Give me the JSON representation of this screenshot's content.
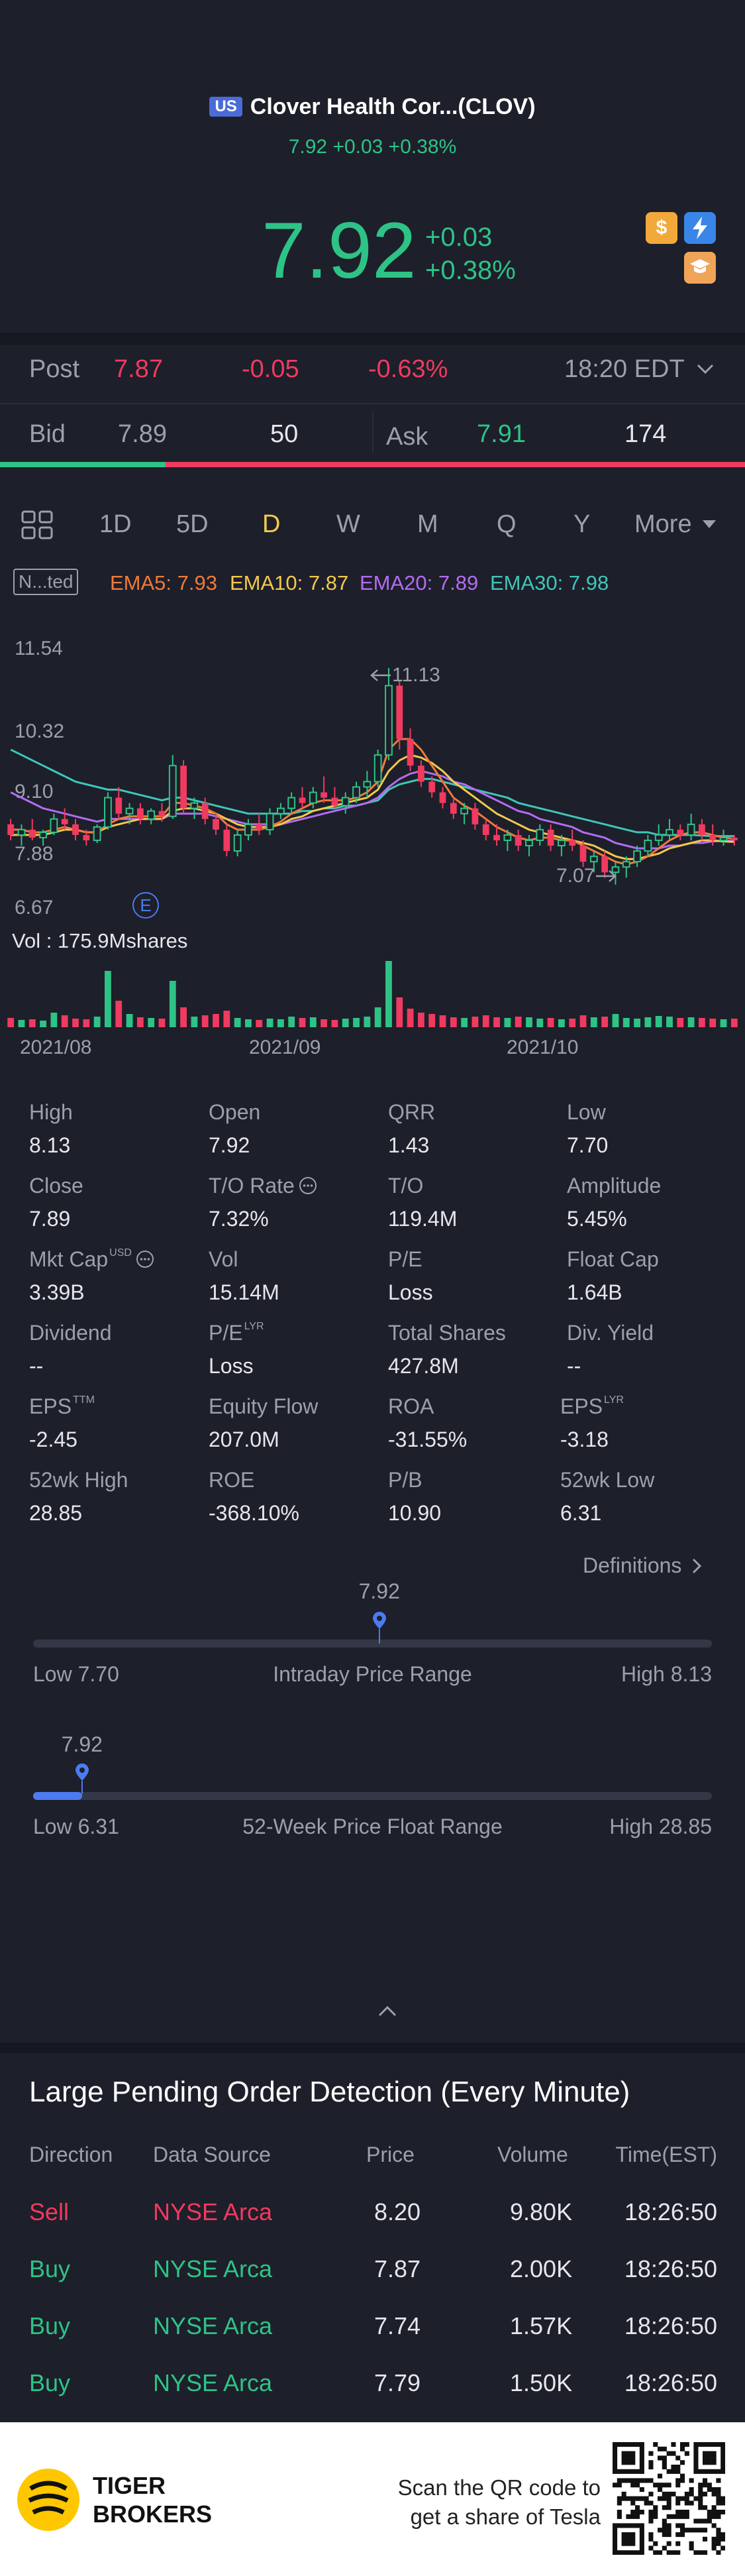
{
  "header": {
    "market_badge": "US",
    "title": "Clover Health Cor...(CLOV)",
    "subtitle": "7.92 +0.03 +0.38%"
  },
  "quote": {
    "price": "7.92",
    "change": "+0.03",
    "change_pct": "+0.38%",
    "dollar_icon": "$"
  },
  "post": {
    "label": "Post",
    "price": "7.87",
    "change": "-0.05",
    "change_pct": "-0.63%",
    "time": "18:20 EDT"
  },
  "bidask": {
    "bid_label": "Bid",
    "bid": "7.89",
    "bid_size": "50",
    "ask_label": "Ask",
    "ask": "7.91",
    "ask_size": "174"
  },
  "tabs": [
    "1D",
    "5D",
    "D",
    "W",
    "M",
    "Q",
    "Y",
    "More"
  ],
  "active_tab": "D",
  "indicators": {
    "badge": "N...ted",
    "ema5": "EMA5: 7.93",
    "ema10": "EMA10: 7.87",
    "ema20": "EMA20: 7.89",
    "ema30": "EMA30: 7.98"
  },
  "colors": {
    "up": "#2ec386",
    "down": "#f03a5f",
    "ema5": "#f07a3a",
    "ema10": "#f2c94c",
    "ema20": "#b36cf0",
    "ema30": "#3fc6b8",
    "accent": "#4b7bf0"
  },
  "chart_data": {
    "type": "candlestick",
    "y_ticks": [
      "11.54",
      "10.32",
      "9.10",
      "7.88",
      "6.67"
    ],
    "ylim": [
      6.67,
      11.54
    ],
    "x_ticks": [
      "2021/08",
      "2021/09",
      "2021/10"
    ],
    "high_annotation": "11.13",
    "low_annotation": "7.07",
    "event_marker": "E",
    "volume_label": "Vol  : 175.9Mshares",
    "candles": [
      [
        8.2,
        8.3,
        7.9,
        8.0
      ],
      [
        8.0,
        8.2,
        7.8,
        8.1
      ],
      [
        8.1,
        8.3,
        7.9,
        7.95
      ],
      [
        7.95,
        8.1,
        7.8,
        8.05
      ],
      [
        8.05,
        8.4,
        8.0,
        8.3
      ],
      [
        8.3,
        8.5,
        8.1,
        8.2
      ],
      [
        8.2,
        8.3,
        7.9,
        8.0
      ],
      [
        8.0,
        8.1,
        7.8,
        7.9
      ],
      [
        7.9,
        8.2,
        7.85,
        8.15
      ],
      [
        8.15,
        8.8,
        8.1,
        8.7
      ],
      [
        8.7,
        8.9,
        8.3,
        8.4
      ],
      [
        8.4,
        8.6,
        8.2,
        8.5
      ],
      [
        8.5,
        8.6,
        8.2,
        8.3
      ],
      [
        8.3,
        8.5,
        8.2,
        8.45
      ],
      [
        8.45,
        8.6,
        8.25,
        8.35
      ],
      [
        8.35,
        9.5,
        8.3,
        9.3
      ],
      [
        9.3,
        9.4,
        8.4,
        8.5
      ],
      [
        8.5,
        8.7,
        8.3,
        8.6
      ],
      [
        8.6,
        8.7,
        8.2,
        8.3
      ],
      [
        8.3,
        8.4,
        8.0,
        8.1
      ],
      [
        8.1,
        8.2,
        7.6,
        7.7
      ],
      [
        7.7,
        8.1,
        7.6,
        8.0
      ],
      [
        8.0,
        8.3,
        7.9,
        8.2
      ],
      [
        8.2,
        8.4,
        8.0,
        8.1
      ],
      [
        8.1,
        8.5,
        8.0,
        8.4
      ],
      [
        8.4,
        8.6,
        8.3,
        8.5
      ],
      [
        8.5,
        8.8,
        8.4,
        8.7
      ],
      [
        8.7,
        8.9,
        8.5,
        8.6
      ],
      [
        8.6,
        8.9,
        8.5,
        8.8
      ],
      [
        8.8,
        9.1,
        8.6,
        8.7
      ],
      [
        8.7,
        8.9,
        8.5,
        8.55
      ],
      [
        8.55,
        8.8,
        8.4,
        8.7
      ],
      [
        8.7,
        9.0,
        8.6,
        8.9
      ],
      [
        8.9,
        9.2,
        8.7,
        9.0
      ],
      [
        9.0,
        9.6,
        8.9,
        9.5
      ],
      [
        9.5,
        11.13,
        9.4,
        10.8
      ],
      [
        10.8,
        10.9,
        9.6,
        9.8
      ],
      [
        9.8,
        10.0,
        9.2,
        9.3
      ],
      [
        9.3,
        9.4,
        8.9,
        9.0
      ],
      [
        9.0,
        9.1,
        8.7,
        8.8
      ],
      [
        8.8,
        8.9,
        8.5,
        8.6
      ],
      [
        8.6,
        8.7,
        8.3,
        8.4
      ],
      [
        8.4,
        8.6,
        8.2,
        8.5
      ],
      [
        8.5,
        8.6,
        8.1,
        8.2
      ],
      [
        8.2,
        8.3,
        7.9,
        8.0
      ],
      [
        8.0,
        8.2,
        7.8,
        7.9
      ],
      [
        7.9,
        8.1,
        7.7,
        8.0
      ],
      [
        8.0,
        8.1,
        7.7,
        7.8
      ],
      [
        7.8,
        8.0,
        7.6,
        7.9
      ],
      [
        7.9,
        8.2,
        7.8,
        8.1
      ],
      [
        8.1,
        8.2,
        7.7,
        7.8
      ],
      [
        7.8,
        8.0,
        7.6,
        7.9
      ],
      [
        7.9,
        8.1,
        7.7,
        7.8
      ],
      [
        7.8,
        7.9,
        7.4,
        7.5
      ],
      [
        7.5,
        7.7,
        7.3,
        7.6
      ],
      [
        7.6,
        7.7,
        7.2,
        7.3
      ],
      [
        7.3,
        7.5,
        7.07,
        7.4
      ],
      [
        7.4,
        7.6,
        7.2,
        7.5
      ],
      [
        7.5,
        7.8,
        7.4,
        7.7
      ],
      [
        7.7,
        8.0,
        7.6,
        7.9
      ],
      [
        7.9,
        8.2,
        7.8,
        8.0
      ],
      [
        8.0,
        8.3,
        7.9,
        8.1
      ],
      [
        8.1,
        8.2,
        7.9,
        8.0
      ],
      [
        8.0,
        8.4,
        7.9,
        8.2
      ],
      [
        8.2,
        8.3,
        7.9,
        8.0
      ],
      [
        8.0,
        8.2,
        7.8,
        7.9
      ],
      [
        7.9,
        8.1,
        7.8,
        7.95
      ],
      [
        7.95,
        8.0,
        7.8,
        7.9
      ]
    ],
    "ema5": [
      8.1,
      8.1,
      8.05,
      8.05,
      8.1,
      8.15,
      8.1,
      8.05,
      8.05,
      8.2,
      8.3,
      8.35,
      8.35,
      8.35,
      8.35,
      8.6,
      8.6,
      8.55,
      8.5,
      8.4,
      8.2,
      8.1,
      8.1,
      8.1,
      8.15,
      8.25,
      8.4,
      8.5,
      8.6,
      8.65,
      8.65,
      8.65,
      8.7,
      8.8,
      9.0,
      9.6,
      9.8,
      9.8,
      9.6,
      9.3,
      9.0,
      8.7,
      8.55,
      8.45,
      8.3,
      8.15,
      8.05,
      7.95,
      7.9,
      7.95,
      7.95,
      7.9,
      7.9,
      7.8,
      7.7,
      7.6,
      7.5,
      7.45,
      7.5,
      7.6,
      7.75,
      7.9,
      8.0,
      8.05,
      8.05,
      8.0,
      7.95,
      7.93
    ],
    "ema10": [
      8.0,
      8.0,
      8.0,
      8.0,
      8.05,
      8.1,
      8.1,
      8.05,
      8.05,
      8.15,
      8.2,
      8.25,
      8.3,
      8.3,
      8.3,
      8.45,
      8.5,
      8.5,
      8.45,
      8.4,
      8.3,
      8.2,
      8.15,
      8.15,
      8.15,
      8.2,
      8.3,
      8.35,
      8.45,
      8.5,
      8.55,
      8.6,
      8.65,
      8.7,
      8.85,
      9.2,
      9.4,
      9.5,
      9.45,
      9.35,
      9.2,
      9.0,
      8.85,
      8.7,
      8.55,
      8.4,
      8.3,
      8.2,
      8.1,
      8.05,
      8.0,
      7.95,
      7.9,
      7.85,
      7.8,
      7.7,
      7.6,
      7.55,
      7.55,
      7.6,
      7.65,
      7.75,
      7.8,
      7.85,
      7.9,
      7.9,
      7.88,
      7.87
    ],
    "ema20": [
      8.8,
      8.7,
      8.6,
      8.5,
      8.45,
      8.4,
      8.35,
      8.3,
      8.25,
      8.3,
      8.3,
      8.3,
      8.3,
      8.3,
      8.3,
      8.4,
      8.4,
      8.4,
      8.4,
      8.35,
      8.3,
      8.25,
      8.2,
      8.2,
      8.2,
      8.2,
      8.25,
      8.3,
      8.35,
      8.4,
      8.45,
      8.5,
      8.55,
      8.6,
      8.7,
      8.9,
      9.05,
      9.15,
      9.2,
      9.15,
      9.1,
      9.0,
      8.95,
      8.85,
      8.75,
      8.65,
      8.55,
      8.45,
      8.4,
      8.3,
      8.25,
      8.2,
      8.15,
      8.05,
      8.0,
      7.95,
      7.85,
      7.8,
      7.75,
      7.75,
      7.75,
      7.8,
      7.8,
      7.85,
      7.85,
      7.88,
      7.89,
      7.89
    ],
    "ema30": [
      9.6,
      9.5,
      9.4,
      9.3,
      9.2,
      9.1,
      9.0,
      8.95,
      8.9,
      8.85,
      8.85,
      8.8,
      8.75,
      8.7,
      8.65,
      8.7,
      8.7,
      8.65,
      8.6,
      8.55,
      8.5,
      8.45,
      8.4,
      8.4,
      8.4,
      8.4,
      8.4,
      8.45,
      8.45,
      8.5,
      8.5,
      8.55,
      8.55,
      8.6,
      8.65,
      8.85,
      8.95,
      9.0,
      9.05,
      9.05,
      9.0,
      8.95,
      8.9,
      8.85,
      8.8,
      8.75,
      8.7,
      8.6,
      8.55,
      8.5,
      8.45,
      8.4,
      8.35,
      8.3,
      8.25,
      8.2,
      8.15,
      8.1,
      8.05,
      8.05,
      8.0,
      8.0,
      8.0,
      8.0,
      7.99,
      7.98,
      7.98,
      7.98
    ],
    "volume": [
      14,
      11,
      12,
      10,
      22,
      18,
      13,
      12,
      16,
      85,
      40,
      20,
      15,
      14,
      13,
      70,
      30,
      16,
      18,
      20,
      25,
      14,
      12,
      11,
      13,
      12,
      16,
      14,
      15,
      12,
      11,
      13,
      14,
      16,
      30,
      100,
      45,
      28,
      22,
      20,
      18,
      15,
      14,
      16,
      18,
      15,
      14,
      16,
      15,
      13,
      14,
      12,
      13,
      18,
      15,
      16,
      20,
      14,
      13,
      15,
      17,
      16,
      14,
      15,
      14,
      13,
      12,
      13
    ]
  },
  "stats": [
    {
      "label": "High",
      "value": "8.13"
    },
    {
      "label": "Open",
      "value": "7.92"
    },
    {
      "label": "QRR",
      "value": "1.43"
    },
    {
      "label": "Low",
      "value": "7.70"
    },
    {
      "label": "Close",
      "value": "7.89"
    },
    {
      "label": "T/O Rate",
      "value": "7.32%"
    },
    {
      "label": "T/O",
      "value": "119.4M"
    },
    {
      "label": "Amplitude",
      "value": "5.45%"
    },
    {
      "label": "Mkt Cap",
      "value": "3.39B",
      "sup": "USD"
    },
    {
      "label": "Vol",
      "value": "15.14M"
    },
    {
      "label": "P/E",
      "value": "Loss"
    },
    {
      "label": "Float Cap",
      "value": "1.64B"
    },
    {
      "label": "Dividend",
      "value": "--"
    },
    {
      "label": "P/E",
      "value": "Loss",
      "sup": "LYR"
    },
    {
      "label": "Total Shares",
      "value": "427.8M"
    },
    {
      "label": "Div. Yield",
      "value": "--"
    },
    {
      "label": "EPS",
      "value": "-2.45",
      "sup": "TTM"
    },
    {
      "label": "Equity Flow",
      "value": "207.0M"
    },
    {
      "label": "ROA",
      "value": "-31.55%"
    },
    {
      "label": "EPS",
      "value": "-3.18",
      "sup": "LYR"
    },
    {
      "label": "52wk High",
      "value": "28.85"
    },
    {
      "label": "ROE",
      "value": "-368.10%"
    },
    {
      "label": "P/B",
      "value": "10.90"
    },
    {
      "label": "52wk Low",
      "value": "6.31"
    }
  ],
  "definitions_link": "Definitions",
  "intraday_range": {
    "current": "7.92",
    "low": "Low 7.70",
    "title": "Intraday Price Range",
    "high": "High 8.13",
    "position": 0.51
  },
  "week52_range": {
    "current": "7.92",
    "low": "Low 6.31",
    "title": "52-Week Price Float Range",
    "high": "High 28.85",
    "position": 0.072
  },
  "orders": {
    "title": "Large Pending Order Detection (Every Minute)",
    "headers": [
      "Direction",
      "Data Source",
      "Price",
      "Volume",
      "Time(EST)"
    ],
    "rows": [
      {
        "direction": "Sell",
        "source": "NYSE Arca",
        "price": "8.20",
        "volume": "9.80K",
        "time": "18:26:50"
      },
      {
        "direction": "Buy",
        "source": "NYSE Arca",
        "price": "7.87",
        "volume": "2.00K",
        "time": "18:26:50"
      },
      {
        "direction": "Buy",
        "source": "NYSE Arca",
        "price": "7.74",
        "volume": "1.57K",
        "time": "18:26:50"
      },
      {
        "direction": "Buy",
        "source": "NYSE Arca",
        "price": "7.79",
        "volume": "1.50K",
        "time": "18:26:50"
      }
    ]
  },
  "footer": {
    "brand_line1": "TIGER",
    "brand_line2": "BROKERS",
    "promo_line1": "Scan the QR code to",
    "promo_line2": "get a share of Tesla"
  }
}
